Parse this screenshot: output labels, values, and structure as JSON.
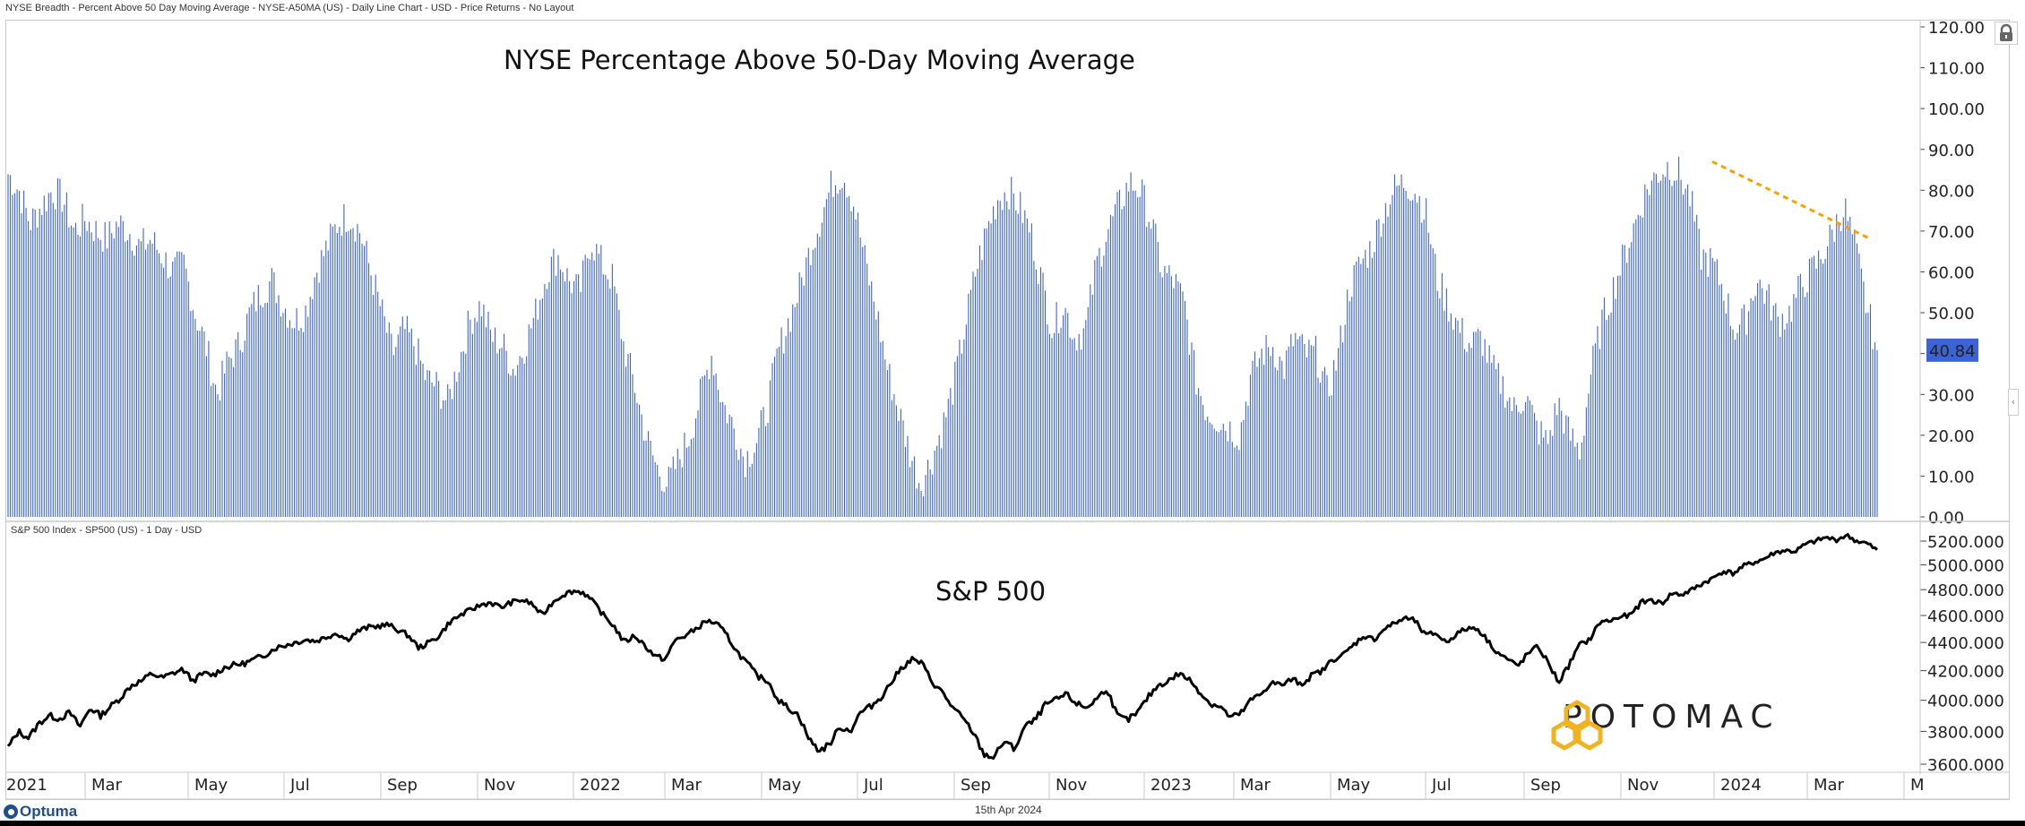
{
  "header": {
    "title": "NYSE Breadth - Percent Above 50 Day Moving Average - NYSE-A50MA (US) - Daily Line Chart - USD - Price Returns - No Layout"
  },
  "lower_panel": {
    "caption": "S&P 500 Index  - SP500 (US) - 1 Day - USD"
  },
  "footer": {
    "brand": "Optuma",
    "date": "15th Apr 2024"
  },
  "watermark": {
    "text": "POTOMAC",
    "color": "#F0B323"
  },
  "colors": {
    "bars": "#3b63d3",
    "trendline": "#F5A300",
    "sp_line": "#000000",
    "last_value_badge": "#3b63d3"
  },
  "icons": {
    "lock": "lock-icon",
    "collapse": "chevron-left-icon"
  },
  "chart_data": [
    {
      "type": "bar",
      "title": "NYSE Percentage Above 50-Day Moving Average",
      "series_name": "NYSE-A50MA",
      "ylim": [
        0,
        120
      ],
      "yticks": [
        "120.00",
        "110.00",
        "100.00",
        "90.00",
        "80.00",
        "70.00",
        "60.00",
        "50.00",
        "40.00",
        "30.00",
        "20.00",
        "10.00",
        "0.00"
      ],
      "ytick_values": [
        120,
        110,
        100,
        90,
        80,
        70,
        60,
        50,
        40,
        30,
        20,
        10,
        0
      ],
      "last_value": 40.84,
      "last_value_label": "40.84",
      "x_ticks": [
        "2021",
        "Mar",
        "May",
        "Jul",
        "Sep",
        "Nov",
        "2022",
        "Mar",
        "May",
        "Jul",
        "Sep",
        "Nov",
        "2023",
        "Mar",
        "May",
        "Jul",
        "Sep",
        "Nov",
        "2024",
        "Mar",
        "M"
      ],
      "x_range": [
        "2021-01-04",
        "2024-04-15"
      ],
      "sampling": "approximately every 5 trading days (weekly), daily bars interpolated",
      "values": [
        84,
        80,
        72,
        76,
        80,
        78,
        70,
        73,
        70,
        68,
        72,
        70,
        66,
        68,
        64,
        60,
        62,
        50,
        42,
        30,
        38,
        42,
        50,
        55,
        58,
        52,
        48,
        50,
        60,
        66,
        72,
        74,
        70,
        60,
        50,
        40,
        46,
        42,
        34,
        32,
        28,
        38,
        48,
        52,
        44,
        42,
        36,
        42,
        50,
        60,
        64,
        58,
        55,
        68,
        62,
        58,
        42,
        32,
        20,
        12,
        8,
        14,
        20,
        30,
        40,
        28,
        22,
        14,
        18,
        26,
        40,
        48,
        56,
        66,
        74,
        82,
        84,
        76,
        62,
        50,
        36,
        26,
        16,
        8,
        14,
        22,
        32,
        46,
        60,
        70,
        78,
        80,
        76,
        70,
        58,
        46,
        52,
        44,
        46,
        62,
        70,
        76,
        82,
        80,
        72,
        60,
        58,
        52,
        34,
        26,
        24,
        22,
        20,
        34,
        40,
        42,
        36,
        44,
        40,
        40,
        30,
        40,
        56,
        62,
        66,
        74,
        80,
        82,
        80,
        74,
        58,
        52,
        46,
        42,
        44,
        36,
        32,
        26,
        30,
        22,
        18,
        28,
        20,
        16,
        36,
        48,
        56,
        64,
        72,
        80,
        84,
        86,
        84,
        78,
        64,
        62,
        56,
        46,
        48,
        58,
        54,
        48,
        50,
        56,
        60,
        64,
        70,
        76,
        66,
        52,
        40.84
      ],
      "trendline": {
        "from_value": 87,
        "to_value": 68,
        "from_date": "2023-12-27",
        "to_date": "2024-04-01",
        "style": "dotted"
      }
    },
    {
      "type": "line",
      "title": "S&P 500",
      "series_name": "SP500",
      "ylim": [
        3550,
        5300
      ],
      "yticks": [
        "5200.000",
        "5000.000",
        "4800.000",
        "4600.000",
        "4400.000",
        "4200.000",
        "4000.000",
        "3800.000",
        "3600.000"
      ],
      "ytick_values": [
        5200,
        5000,
        4800,
        4600,
        4400,
        4200,
        4000,
        3800,
        3600
      ],
      "scale": "log",
      "sampling": "approximately every 5 trading days (weekly)",
      "values": [
        3700,
        3800,
        3760,
        3850,
        3900,
        3880,
        3920,
        3830,
        3950,
        3900,
        3960,
        4020,
        4100,
        4130,
        4180,
        4150,
        4180,
        4210,
        4130,
        4180,
        4170,
        4220,
        4240,
        4250,
        4280,
        4310,
        4360,
        4380,
        4400,
        4420,
        4410,
        4440,
        4470,
        4420,
        4480,
        4510,
        4520,
        4530,
        4490,
        4450,
        4360,
        4400,
        4450,
        4550,
        4600,
        4640,
        4680,
        4700,
        4660,
        4700,
        4720,
        4690,
        4600,
        4700,
        4760,
        4790,
        4780,
        4700,
        4600,
        4520,
        4400,
        4450,
        4380,
        4300,
        4280,
        4420,
        4450,
        4500,
        4560,
        4540,
        4450,
        4330,
        4250,
        4160,
        4130,
        4000,
        3950,
        3900,
        3750,
        3680,
        3720,
        3830,
        3800,
        3920,
        3960,
        4020,
        4120,
        4220,
        4280,
        4250,
        4120,
        4050,
        3950,
        3880,
        3790,
        3660,
        3640,
        3740,
        3690,
        3830,
        3870,
        3970,
        4000,
        4040,
        3980,
        3950,
        4010,
        4080,
        3900,
        3870,
        3920,
        4020,
        4100,
        4130,
        4180,
        4140,
        4060,
        3980,
        3960,
        3890,
        3910,
        4000,
        4040,
        4120,
        4100,
        4140,
        4110,
        4170,
        4200,
        4280,
        4310,
        4380,
        4450,
        4420,
        4500,
        4540,
        4580,
        4560,
        4450,
        4470,
        4400,
        4460,
        4500,
        4510,
        4420,
        4330,
        4280,
        4230,
        4320,
        4370,
        4250,
        4120,
        4240,
        4380,
        4420,
        4550,
        4560,
        4590,
        4600,
        4700,
        4720,
        4690,
        4770,
        4760,
        4800,
        4850,
        4890,
        4950,
        4930,
        4990,
        5020,
        5050,
        5100,
        5120,
        5110,
        5170,
        5200,
        5230,
        5210,
        5250,
        5200,
        5180,
        5120
      ]
    }
  ]
}
